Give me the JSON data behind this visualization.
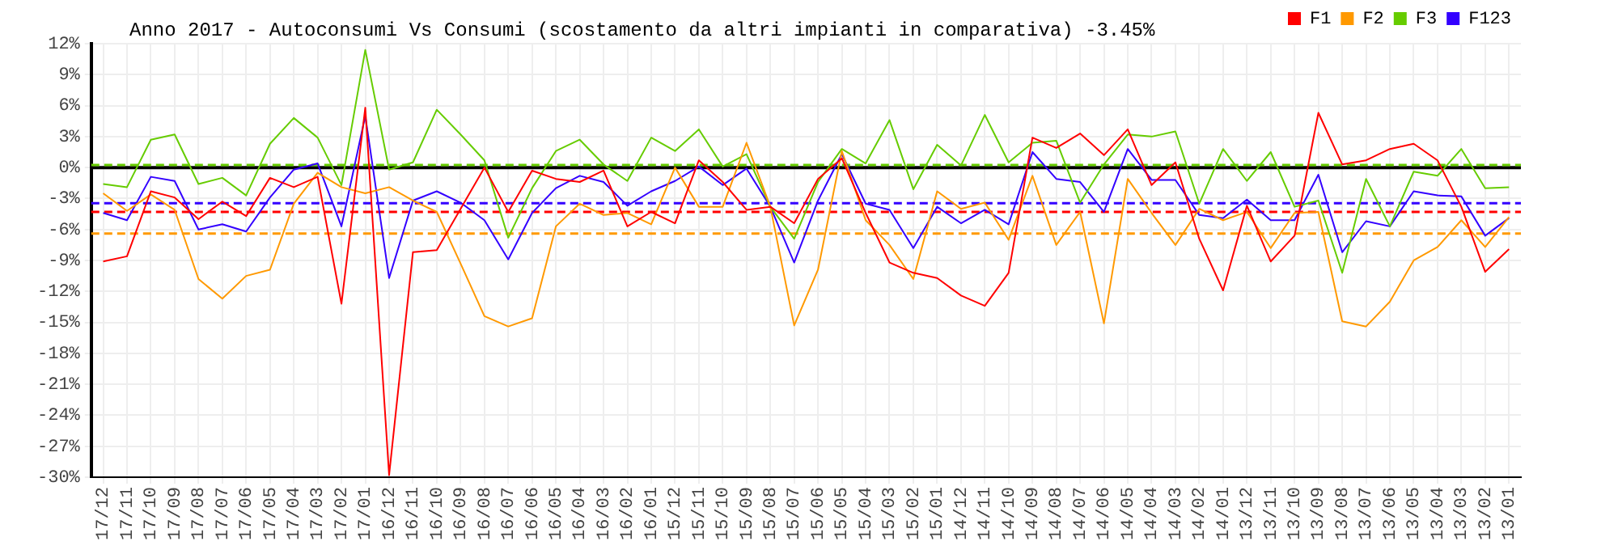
{
  "chart_data": {
    "type": "line",
    "title": "Anno 2017 - Autoconsumi Vs Consumi (scostamento da altri impianti in comparativa) -3.45%",
    "categories": [
      "17/12",
      "17/11",
      "17/10",
      "17/09",
      "17/08",
      "17/07",
      "17/06",
      "17/05",
      "17/04",
      "17/03",
      "17/02",
      "17/01",
      "16/12",
      "16/11",
      "16/10",
      "16/09",
      "16/08",
      "16/07",
      "16/06",
      "16/05",
      "16/04",
      "16/03",
      "16/02",
      "16/01",
      "15/12",
      "15/11",
      "15/10",
      "15/09",
      "15/08",
      "15/07",
      "15/06",
      "15/05",
      "15/04",
      "15/03",
      "15/02",
      "15/01",
      "14/12",
      "14/11",
      "14/10",
      "14/09",
      "14/08",
      "14/07",
      "14/06",
      "14/05",
      "14/04",
      "14/03",
      "14/02",
      "14/01",
      "13/12",
      "13/11",
      "13/10",
      "13/09",
      "13/08",
      "13/07",
      "13/06",
      "13/05",
      "13/04",
      "13/03",
      "13/02",
      "13/01"
    ],
    "series": [
      {
        "name": "F1",
        "color": "#ff0000",
        "values": [
          -9.1,
          -8.6,
          -2.3,
          -2.9,
          -5.0,
          -3.3,
          -4.7,
          -1.0,
          -1.9,
          -0.9,
          -13.2,
          5.8,
          -29.8,
          -8.2,
          -8.0,
          -4.0,
          0.0,
          -4.3,
          -0.3,
          -1.1,
          -1.4,
          -0.3,
          -5.7,
          -4.3,
          -5.4,
          0.7,
          -1.4,
          -4.1,
          -3.8,
          -5.4,
          -1.1,
          0.9,
          -4.4,
          -9.2,
          -10.2,
          -10.7,
          -12.4,
          -13.4,
          -10.2,
          2.9,
          1.9,
          3.3,
          1.2,
          3.7,
          -1.7,
          0.5,
          -6.9,
          -11.9,
          -3.7,
          -9.1,
          -6.6,
          5.3,
          0.3,
          0.7,
          1.8,
          2.3,
          0.7,
          -3.8,
          -10.1,
          -7.9
        ]
      },
      {
        "name": "F2",
        "color": "#ff9900",
        "values": [
          -2.5,
          -4.2,
          -2.6,
          -4.1,
          -10.8,
          -12.7,
          -10.5,
          -9.9,
          -3.5,
          -0.5,
          -1.9,
          -2.5,
          -1.9,
          -3.2,
          -4.3,
          -9.3,
          -14.4,
          -15.4,
          -14.6,
          -5.7,
          -3.5,
          -4.6,
          -4.4,
          -5.5,
          0.0,
          -3.8,
          -3.8,
          2.4,
          -3.8,
          -15.3,
          -9.9,
          1.6,
          -5.1,
          -7.5,
          -10.8,
          -2.3,
          -4.0,
          -3.4,
          -7.0,
          -0.8,
          -7.5,
          -4.3,
          -15.1,
          -1.1,
          -4.4,
          -7.5,
          -4.0,
          -5.1,
          -4.3,
          -7.8,
          -4.4,
          -4.3,
          -14.9,
          -15.4,
          -13.0,
          -9.0,
          -7.7,
          -5.1,
          -7.7,
          -4.8
        ]
      },
      {
        "name": "F3",
        "color": "#66cc00",
        "values": [
          -1.6,
          -1.9,
          2.7,
          3.2,
          -1.6,
          -1.0,
          -2.7,
          2.3,
          4.8,
          2.9,
          -1.7,
          11.4,
          -0.2,
          0.5,
          5.6,
          3.2,
          0.7,
          -6.8,
          -2.0,
          1.6,
          2.7,
          0.3,
          -1.3,
          2.9,
          1.6,
          3.7,
          0.1,
          1.3,
          -3.8,
          -6.9,
          -1.4,
          1.8,
          0.4,
          4.6,
          -2.1,
          2.2,
          0.2,
          5.1,
          0.5,
          2.4,
          2.6,
          -3.4,
          0.3,
          3.2,
          3.0,
          3.5,
          -3.5,
          1.8,
          -1.3,
          1.5,
          -3.8,
          -3.2,
          -10.2,
          -1.1,
          -5.7,
          -0.4,
          -0.8,
          1.8,
          -2.0,
          -1.9
        ]
      },
      {
        "name": "F123",
        "color": "#3300ff",
        "values": [
          -4.4,
          -5.1,
          -0.9,
          -1.3,
          -6.0,
          -5.5,
          -6.2,
          -2.9,
          -0.2,
          0.4,
          -5.7,
          5.0,
          -10.7,
          -3.2,
          -2.3,
          -3.4,
          -5.1,
          -8.9,
          -4.4,
          -2.0,
          -0.8,
          -1.4,
          -3.7,
          -2.3,
          -1.3,
          0.1,
          -1.7,
          -0.1,
          -3.8,
          -9.2,
          -3.2,
          1.3,
          -3.5,
          -4.1,
          -7.8,
          -3.8,
          -5.4,
          -4.1,
          -5.5,
          1.5,
          -1.1,
          -1.4,
          -4.3,
          1.8,
          -1.2,
          -1.2,
          -4.6,
          -4.9,
          -3.1,
          -5.1,
          -5.1,
          -0.7,
          -8.2,
          -5.2,
          -5.7,
          -2.3,
          -2.7,
          -2.8,
          -6.6,
          -4.9
        ]
      }
    ],
    "ref_lines": [
      {
        "axis": "y",
        "value": 0,
        "color": "#000000",
        "line_style": "solid"
      },
      {
        "axis": "y",
        "value": 0.25,
        "color": "#66cc00",
        "line_style": "dashed"
      },
      {
        "axis": "y",
        "value": -3.45,
        "color": "#3300ff",
        "line_style": "dashed"
      },
      {
        "axis": "y",
        "value": -4.3,
        "color": "#ff0000",
        "line_style": "dashed"
      },
      {
        "axis": "y",
        "value": -6.4,
        "color": "#ff9900",
        "line_style": "dashed"
      }
    ],
    "ylim": [
      -30,
      12
    ],
    "yticks": [
      {
        "value": -30,
        "label": "-30%"
      },
      {
        "value": -27,
        "label": "-27%"
      },
      {
        "value": -24,
        "label": "-24%"
      },
      {
        "value": -21,
        "label": "-21%"
      },
      {
        "value": -18,
        "label": "-18%"
      },
      {
        "value": -15,
        "label": "-15%"
      },
      {
        "value": -12,
        "label": "-12%"
      },
      {
        "value": -9,
        "label": "-9%"
      },
      {
        "value": -6,
        "label": "-6%"
      },
      {
        "value": -3,
        "label": "-3%"
      },
      {
        "value": 0,
        "label": "0%"
      },
      {
        "value": 3,
        "label": "3%"
      },
      {
        "value": 6,
        "label": "6%"
      },
      {
        "value": 9,
        "label": "9%"
      },
      {
        "value": 12,
        "label": "12%"
      }
    ],
    "grid": true,
    "legend": "top right",
    "marker": "none",
    "line_style": "solid"
  }
}
